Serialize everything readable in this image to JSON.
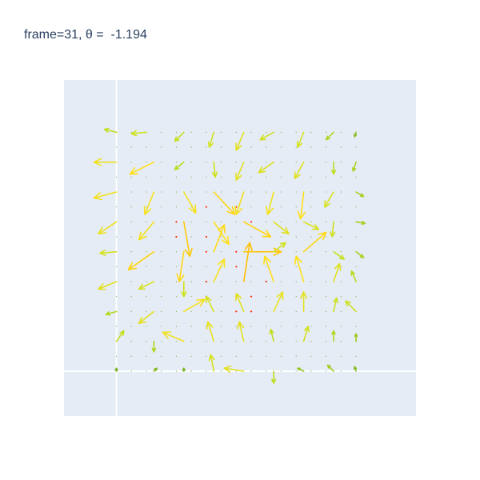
{
  "title": "frame=31, θ =  -1.194",
  "chart_data": {
    "type": "quiver",
    "title": "frame=31, θ =  -1.194",
    "xlabel": "",
    "ylabel": "",
    "xlim": [
      -0.35,
      2.0
    ],
    "ylim": [
      -0.3,
      1.95
    ],
    "grid": {
      "xs": [
        0,
        0.1,
        0.2,
        0.3,
        0.4,
        0.5,
        0.6,
        0.7,
        0.8,
        0.9,
        1.0,
        1.1,
        1.2,
        1.3,
        1.4,
        1.5,
        1.6
      ],
      "ys": [
        0,
        0.1,
        0.2,
        0.3,
        0.4,
        0.5,
        0.6,
        0.7,
        0.8,
        0.9,
        1.0,
        1.1,
        1.2,
        1.3,
        1.4,
        1.5,
        1.6
      ]
    },
    "zero_lines": true,
    "plot_bgcolor": "#e5ecf6",
    "colorscale": [
      "#66a61e",
      "#c7e11e",
      "#ffe119",
      "#ffbf00"
    ],
    "red_points": [
      [
        0.4,
        1.0
      ],
      [
        0.4,
        0.9
      ],
      [
        0.6,
        0.9
      ],
      [
        0.6,
        0.8
      ],
      [
        0.8,
        0.8
      ],
      [
        0.8,
        0.7
      ],
      [
        0.6,
        0.6
      ],
      [
        0.6,
        0.5
      ],
      [
        0.8,
        0.5
      ],
      [
        0.8,
        0.4
      ],
      [
        0.9,
        0.4
      ],
      [
        0.9,
        0.5
      ],
      [
        1.0,
        0.6
      ],
      [
        0.9,
        1.0
      ],
      [
        0.8,
        1.1
      ],
      [
        0.6,
        1.1
      ]
    ],
    "arrows": [
      {
        "x": 0.0,
        "y": 1.6,
        "u": -0.08,
        "v": 0.02
      },
      {
        "x": 0.2,
        "y": 1.6,
        "u": -0.1,
        "v": -0.01
      },
      {
        "x": 0.45,
        "y": 1.6,
        "u": -0.06,
        "v": -0.06
      },
      {
        "x": 0.65,
        "y": 1.6,
        "u": -0.03,
        "v": -0.1
      },
      {
        "x": 0.85,
        "y": 1.6,
        "u": -0.05,
        "v": -0.12
      },
      {
        "x": 1.05,
        "y": 1.6,
        "u": -0.09,
        "v": -0.05
      },
      {
        "x": 1.25,
        "y": 1.6,
        "u": -0.04,
        "v": -0.1
      },
      {
        "x": 1.45,
        "y": 1.6,
        "u": -0.05,
        "v": -0.05
      },
      {
        "x": 1.6,
        "y": 1.6,
        "u": -0.01,
        "v": -0.03
      },
      {
        "x": 0.0,
        "y": 1.4,
        "u": -0.15,
        "v": 0.0
      },
      {
        "x": 0.25,
        "y": 1.4,
        "u": -0.16,
        "v": -0.08
      },
      {
        "x": 0.45,
        "y": 1.4,
        "u": -0.06,
        "v": -0.05
      },
      {
        "x": 0.65,
        "y": 1.4,
        "u": 0.01,
        "v": -0.1
      },
      {
        "x": 0.85,
        "y": 1.4,
        "u": -0.05,
        "v": -0.12
      },
      {
        "x": 1.05,
        "y": 1.4,
        "u": -0.1,
        "v": -0.07
      },
      {
        "x": 1.25,
        "y": 1.4,
        "u": -0.06,
        "v": -0.11
      },
      {
        "x": 1.45,
        "y": 1.4,
        "u": 0.0,
        "v": -0.08
      },
      {
        "x": 1.6,
        "y": 1.4,
        "u": -0.02,
        "v": -0.06
      },
      {
        "x": 0.0,
        "y": 1.2,
        "u": -0.15,
        "v": -0.04
      },
      {
        "x": 0.25,
        "y": 1.2,
        "u": -0.06,
        "v": -0.15
      },
      {
        "x": 0.45,
        "y": 1.2,
        "u": 0.08,
        "v": -0.14
      },
      {
        "x": 0.65,
        "y": 1.2,
        "u": 0.14,
        "v": -0.15
      },
      {
        "x": 0.85,
        "y": 1.2,
        "u": -0.05,
        "v": -0.15
      },
      {
        "x": 1.05,
        "y": 1.2,
        "u": -0.04,
        "v": -0.15
      },
      {
        "x": 1.25,
        "y": 1.2,
        "u": -0.02,
        "v": -0.18
      },
      {
        "x": 1.45,
        "y": 1.2,
        "u": -0.06,
        "v": -0.1
      },
      {
        "x": 1.6,
        "y": 1.2,
        "u": 0.05,
        "v": -0.03
      },
      {
        "x": 0.0,
        "y": 1.0,
        "u": -0.12,
        "v": -0.08
      },
      {
        "x": 0.25,
        "y": 1.0,
        "u": -0.1,
        "v": -0.12
      },
      {
        "x": 0.45,
        "y": 1.0,
        "u": 0.04,
        "v": -0.23
      },
      {
        "x": 0.65,
        "y": 1.0,
        "u": 0.1,
        "v": -0.15
      },
      {
        "x": 0.85,
        "y": 1.0,
        "u": 0.18,
        "v": -0.1
      },
      {
        "x": 1.05,
        "y": 1.0,
        "u": 0.1,
        "v": -0.08
      },
      {
        "x": 1.25,
        "y": 1.0,
        "u": 0.1,
        "v": -0.05
      },
      {
        "x": 1.45,
        "y": 1.0,
        "u": -0.01,
        "v": -0.1
      },
      {
        "x": 1.6,
        "y": 1.0,
        "u": 0.06,
        "v": -0.01
      },
      {
        "x": 0.0,
        "y": 0.8,
        "u": -0.11,
        "v": -0.01
      },
      {
        "x": 0.25,
        "y": 0.8,
        "u": -0.17,
        "v": -0.12
      },
      {
        "x": 0.45,
        "y": 0.8,
        "u": -0.03,
        "v": -0.2
      },
      {
        "x": 0.65,
        "y": 0.8,
        "u": 0.07,
        "v": 0.18
      },
      {
        "x": 0.85,
        "y": 0.8,
        "u": 0.25,
        "v": 0.0
      },
      {
        "x": 1.05,
        "y": 0.8,
        "u": 0.08,
        "v": 0.06
      },
      {
        "x": 1.25,
        "y": 0.8,
        "u": 0.15,
        "v": 0.13
      },
      {
        "x": 1.45,
        "y": 0.8,
        "u": 0.07,
        "v": -0.05
      },
      {
        "x": 1.6,
        "y": 0.8,
        "u": 0.05,
        "v": -0.04
      },
      {
        "x": 0.0,
        "y": 0.6,
        "u": -0.12,
        "v": -0.05
      },
      {
        "x": 0.25,
        "y": 0.6,
        "u": -0.1,
        "v": -0.05
      },
      {
        "x": 0.45,
        "y": 0.6,
        "u": 0.0,
        "v": -0.1
      },
      {
        "x": 0.65,
        "y": 0.6,
        "u": 0.07,
        "v": 0.15
      },
      {
        "x": 0.85,
        "y": 0.6,
        "u": 0.04,
        "v": 0.26
      },
      {
        "x": 1.05,
        "y": 0.6,
        "u": -0.06,
        "v": 0.17
      },
      {
        "x": 1.25,
        "y": 0.6,
        "u": -0.05,
        "v": 0.17
      },
      {
        "x": 1.45,
        "y": 0.6,
        "u": 0.04,
        "v": 0.12
      },
      {
        "x": 1.6,
        "y": 0.6,
        "u": -0.03,
        "v": 0.07
      },
      {
        "x": 0.0,
        "y": 0.4,
        "u": -0.07,
        "v": -0.02
      },
      {
        "x": 0.25,
        "y": 0.4,
        "u": -0.1,
        "v": -0.08
      },
      {
        "x": 0.45,
        "y": 0.4,
        "u": 0.14,
        "v": 0.08
      },
      {
        "x": 0.65,
        "y": 0.4,
        "u": -0.05,
        "v": 0.1
      },
      {
        "x": 0.85,
        "y": 0.4,
        "u": -0.05,
        "v": 0.12
      },
      {
        "x": 1.05,
        "y": 0.4,
        "u": 0.06,
        "v": 0.13
      },
      {
        "x": 1.25,
        "y": 0.4,
        "u": 0.0,
        "v": 0.13
      },
      {
        "x": 1.45,
        "y": 0.4,
        "u": 0.02,
        "v": 0.09
      },
      {
        "x": 1.6,
        "y": 0.4,
        "u": -0.07,
        "v": 0.07
      },
      {
        "x": 0.0,
        "y": 0.2,
        "u": 0.05,
        "v": 0.07
      },
      {
        "x": 0.25,
        "y": 0.2,
        "u": 0.0,
        "v": -0.07
      },
      {
        "x": 0.45,
        "y": 0.2,
        "u": -0.14,
        "v": 0.06
      },
      {
        "x": 0.65,
        "y": 0.2,
        "u": -0.04,
        "v": 0.13
      },
      {
        "x": 0.85,
        "y": 0.2,
        "u": -0.03,
        "v": 0.13
      },
      {
        "x": 1.05,
        "y": 0.2,
        "u": -0.02,
        "v": 0.08
      },
      {
        "x": 1.25,
        "y": 0.2,
        "u": 0.03,
        "v": 0.1
      },
      {
        "x": 1.45,
        "y": 0.2,
        "u": 0.0,
        "v": 0.07
      },
      {
        "x": 1.6,
        "y": 0.2,
        "u": 0.0,
        "v": 0.05
      },
      {
        "x": 0.0,
        "y": 0.0,
        "u": 0.0,
        "v": 0.02
      },
      {
        "x": 0.25,
        "y": 0.0,
        "u": 0.02,
        "v": 0.02
      },
      {
        "x": 0.45,
        "y": 0.0,
        "u": 0.0,
        "v": 0.02
      },
      {
        "x": 0.65,
        "y": 0.0,
        "u": -0.02,
        "v": 0.11
      },
      {
        "x": 0.85,
        "y": 0.0,
        "u": -0.13,
        "v": 0.02
      },
      {
        "x": 1.05,
        "y": 0.0,
        "u": 0.0,
        "v": -0.08
      },
      {
        "x": 1.25,
        "y": 0.0,
        "u": -0.04,
        "v": 0.02
      },
      {
        "x": 1.45,
        "y": 0.0,
        "u": -0.04,
        "v": 0.04
      },
      {
        "x": 1.6,
        "y": 0.0,
        "u": -0.01,
        "v": 0.03
      }
    ]
  }
}
